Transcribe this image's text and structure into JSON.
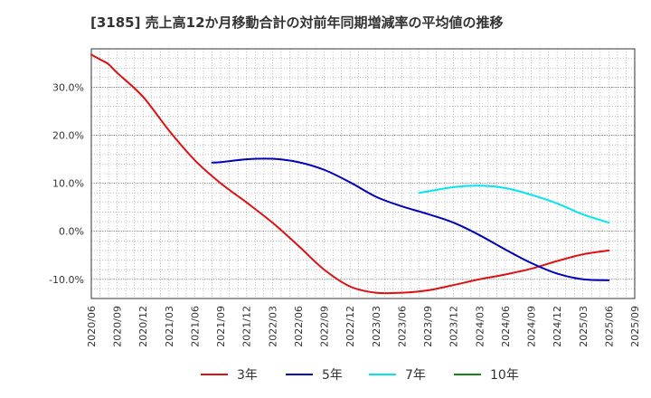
{
  "chart_data": {
    "type": "line",
    "title": "[3185]  売上高12か月移動合計の対前年同期増減率の平均値の推移",
    "xlabel": "",
    "ylabel": "",
    "y_unit": "%",
    "ylim": [
      -14,
      38
    ],
    "y_ticks": [
      -10,
      0,
      10,
      20,
      30
    ],
    "y_tick_labels": [
      "-10.0%",
      "0.0%",
      "10.0%",
      "20.0%",
      "30.0%"
    ],
    "x_tick_labels": [
      "2020/06",
      "2020/09",
      "2020/12",
      "2021/03",
      "2021/06",
      "2021/09",
      "2021/12",
      "2022/03",
      "2022/06",
      "2022/09",
      "2022/12",
      "2023/03",
      "2023/06",
      "2023/09",
      "2023/12",
      "2024/03",
      "2024/06",
      "2024/09",
      "2024/12",
      "2025/03",
      "2025/06",
      "2025/09"
    ],
    "grid": true,
    "legend_position": "bottom",
    "series": [
      {
        "name": "3年",
        "color": "#dd1111",
        "points": [
          [
            "2020/06",
            36.8
          ],
          [
            "2020/07",
            35.8
          ],
          [
            "2020/08",
            34.8
          ],
          [
            "2020/09",
            33.0
          ],
          [
            "2020/12",
            28.0
          ],
          [
            "2021/03",
            21.0
          ],
          [
            "2021/06",
            14.8
          ],
          [
            "2021/09",
            10.0
          ],
          [
            "2021/12",
            6.0
          ],
          [
            "2022/03",
            1.8
          ],
          [
            "2022/06",
            -3.0
          ],
          [
            "2022/09",
            -8.0
          ],
          [
            "2022/12",
            -11.5
          ],
          [
            "2023/03",
            -12.8
          ],
          [
            "2023/06",
            -12.8
          ],
          [
            "2023/09",
            -12.3
          ],
          [
            "2023/12",
            -11.2
          ],
          [
            "2024/03",
            -10.0
          ],
          [
            "2024/06",
            -9.0
          ],
          [
            "2024/09",
            -7.8
          ],
          [
            "2024/12",
            -6.2
          ],
          [
            "2025/03",
            -4.8
          ],
          [
            "2025/06",
            -4.0
          ]
        ]
      },
      {
        "name": "5年",
        "color": "#0000bb",
        "points": [
          [
            "2021/08",
            14.3
          ],
          [
            "2021/09",
            14.4
          ],
          [
            "2021/12",
            15.0
          ],
          [
            "2022/03",
            15.1
          ],
          [
            "2022/06",
            14.4
          ],
          [
            "2022/09",
            12.8
          ],
          [
            "2022/12",
            10.2
          ],
          [
            "2023/03",
            7.2
          ],
          [
            "2023/06",
            5.2
          ],
          [
            "2023/09",
            3.6
          ],
          [
            "2023/12",
            1.8
          ],
          [
            "2024/03",
            -0.8
          ],
          [
            "2024/06",
            -3.8
          ],
          [
            "2024/09",
            -6.6
          ],
          [
            "2024/12",
            -8.8
          ],
          [
            "2025/03",
            -10.0
          ],
          [
            "2025/06",
            -10.2
          ]
        ]
      },
      {
        "name": "7年",
        "color": "#00e5ee",
        "points": [
          [
            "2023/08",
            8.0
          ],
          [
            "2023/09",
            8.3
          ],
          [
            "2023/12",
            9.2
          ],
          [
            "2024/03",
            9.5
          ],
          [
            "2024/06",
            9.0
          ],
          [
            "2024/09",
            7.6
          ],
          [
            "2024/12",
            5.8
          ],
          [
            "2025/03",
            3.5
          ],
          [
            "2025/06",
            1.8
          ]
        ]
      },
      {
        "name": "10年",
        "color": "#118811",
        "points": []
      }
    ]
  }
}
